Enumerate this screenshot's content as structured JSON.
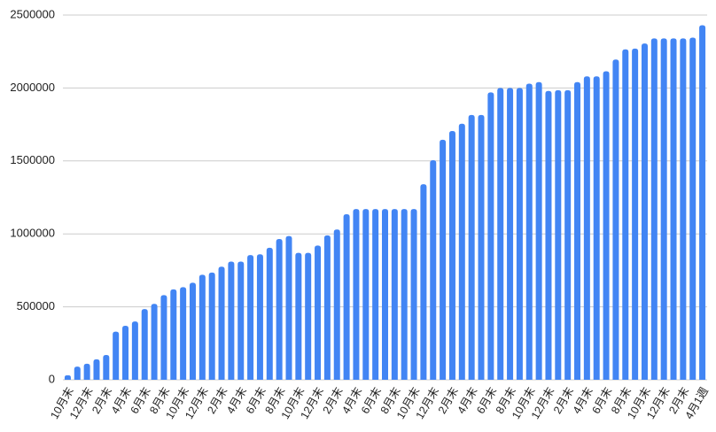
{
  "chart_data": {
    "type": "bar",
    "categories": [
      "10月末",
      null,
      "12月末",
      null,
      "2月末",
      null,
      "4月末",
      null,
      "6月末",
      null,
      "8月末",
      null,
      "10月末",
      null,
      "12月末",
      null,
      "2月末",
      null,
      "4月末",
      null,
      "6月末",
      null,
      "8月末",
      null,
      "10月末",
      null,
      "12月末",
      null,
      "2月末",
      null,
      "4月末",
      null,
      "6月末",
      null,
      "8月末",
      null,
      "10月末",
      null,
      "12月末",
      null,
      "2月末",
      null,
      "4月末",
      null,
      "6月末",
      null,
      "8月末",
      null,
      "10月末",
      null,
      "12月末",
      null,
      "2月末",
      null,
      "4月末",
      null,
      "6月末",
      null,
      "8月末",
      null,
      "10月末",
      null,
      "12月末",
      null,
      "2月末",
      null,
      "4月1週"
    ],
    "values": [
      30000,
      90000,
      110000,
      140000,
      170000,
      330000,
      370000,
      400000,
      485000,
      520000,
      580000,
      620000,
      635000,
      665000,
      720000,
      735000,
      775000,
      810000,
      810000,
      855000,
      860000,
      905000,
      965000,
      985000,
      870000,
      870000,
      920000,
      990000,
      1030000,
      1135000,
      1170000,
      1170000,
      1170000,
      1170000,
      1170000,
      1170000,
      1170000,
      1340000,
      1505000,
      1645000,
      1705000,
      1755000,
      1815000,
      1815000,
      1970000,
      2000000,
      2000000,
      2000000,
      2030000,
      2040000,
      1980000,
      1985000,
      1985000,
      2040000,
      2080000,
      2080000,
      2115000,
      2195000,
      2265000,
      2270000,
      2305000,
      2340000,
      2340000,
      2340000,
      2340000,
      2345000,
      2430000
    ],
    "color": "#4285f4",
    "ylim": [
      0,
      2500000
    ],
    "yticks": [
      0,
      500000,
      1000000,
      1500000,
      2000000,
      2500000
    ],
    "grid": true
  }
}
